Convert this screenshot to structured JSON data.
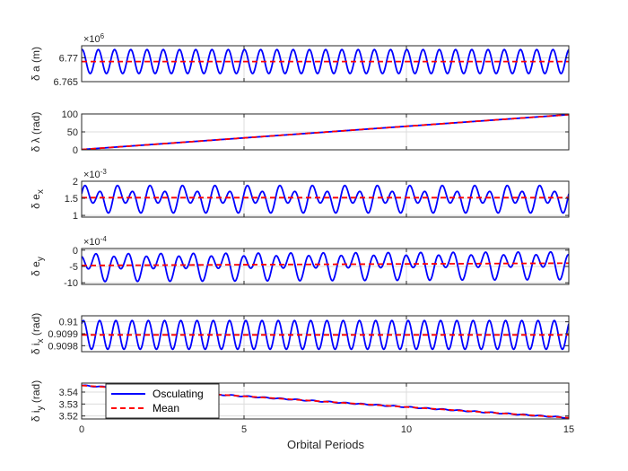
{
  "figure": {
    "xlabel": "Orbital Periods",
    "x_ticks": [
      "0",
      "5",
      "10",
      "15"
    ],
    "legend": {
      "placement": "top-left of last panel",
      "entries": [
        "Osculating",
        "Mean"
      ]
    },
    "colors": {
      "osculating": "#0000FF",
      "mean": "#FF0000",
      "grid": "#dcdcdc",
      "axes": "#262626"
    }
  },
  "chart_data": [
    {
      "type": "line",
      "ylabel": "δ a (m)",
      "exponent_label": "×10^6",
      "yticks": [
        6.765,
        6.77
      ],
      "ytick_labels": [
        "6.765",
        "6.77"
      ],
      "ylim": [
        6.765,
        6.7725
      ],
      "xlim": [
        0,
        15
      ],
      "grid": true,
      "series": [
        {
          "name": "Osculating",
          "style": "solid",
          "model": {
            "kind": "sin",
            "mean": 6.7692,
            "amplitude": 0.0025,
            "cycles_per_period": 2,
            "phase": 1.4
          }
        },
        {
          "name": "Mean",
          "style": "dashed",
          "model": {
            "kind": "const",
            "value": 6.7692
          }
        }
      ]
    },
    {
      "type": "line",
      "ylabel": "δ λ (rad)",
      "exponent_label": "",
      "yticks": [
        0,
        50,
        100
      ],
      "ytick_labels": [
        "0",
        "50",
        "100"
      ],
      "ylim": [
        0,
        100
      ],
      "xlim": [
        0,
        15
      ],
      "grid": true,
      "series": [
        {
          "name": "Osculating",
          "style": "solid",
          "model": {
            "kind": "linear",
            "start": 0.8,
            "end": 98
          }
        },
        {
          "name": "Mean",
          "style": "dashed",
          "model": {
            "kind": "linear",
            "start": 0.8,
            "end": 98
          }
        }
      ]
    },
    {
      "type": "line",
      "ylabel": "δ e_x",
      "exponent_label": "×10^-3",
      "yticks": [
        1,
        1.5,
        2
      ],
      "ytick_labels": [
        "1",
        "1.5",
        "2"
      ],
      "ylim": [
        0.95,
        2.0
      ],
      "xlim": [
        0,
        15
      ],
      "grid": true,
      "series": [
        {
          "name": "Osculating",
          "style": "solid",
          "model": {
            "kind": "sin2",
            "mean": 1.5,
            "a1": 0.28,
            "f1": 2,
            "a2": 0.17,
            "f2": 1,
            "phase": 0.5
          }
        },
        {
          "name": "Mean",
          "style": "dashed",
          "model": {
            "kind": "const",
            "value": 1.52
          }
        }
      ]
    },
    {
      "type": "line",
      "ylabel": "δ e_y",
      "exponent_label": "×10^-4",
      "yticks": [
        -10,
        -5,
        0
      ],
      "ytick_labels": [
        "-10",
        "-5",
        "0"
      ],
      "ylim": [
        -10.5,
        0.5
      ],
      "xlim": [
        0,
        15
      ],
      "grid": true,
      "series": [
        {
          "name": "Osculating",
          "style": "solid",
          "model": {
            "kind": "sin2",
            "mean": -4.7,
            "a1": 3.0,
            "f1": 2,
            "a2": 2.0,
            "f2": 1,
            "phase": 2.0,
            "drift": 0.6
          }
        },
        {
          "name": "Mean",
          "style": "dashed",
          "model": {
            "kind": "linear",
            "start": -4.7,
            "end": -4.0
          }
        }
      ]
    },
    {
      "type": "line",
      "ylabel": "δ i_x (rad)",
      "exponent_label": "",
      "yticks": [
        0.9098,
        0.9099,
        0.91
      ],
      "ytick_labels": [
        "0.9098",
        "0.9099",
        "0.91"
      ],
      "ylim": [
        0.90975,
        0.91005
      ],
      "xlim": [
        0,
        15
      ],
      "grid": true,
      "series": [
        {
          "name": "Osculating",
          "style": "solid",
          "model": {
            "kind": "sin",
            "mean": 0.90989,
            "amplitude": 0.00012,
            "cycles_per_period": 2,
            "phase": 0.9
          }
        },
        {
          "name": "Mean",
          "style": "dashed",
          "model": {
            "kind": "const",
            "value": 0.90989
          }
        }
      ]
    },
    {
      "type": "line",
      "ylabel": "δ i_y (rad)",
      "exponent_label": "",
      "yticks": [
        3.52,
        3.53,
        3.54
      ],
      "ytick_labels": [
        "3.52",
        "3.53",
        "3.54"
      ],
      "ylim": [
        3.5175,
        3.5475
      ],
      "xlim": [
        0,
        15
      ],
      "grid": true,
      "series": [
        {
          "name": "Osculating",
          "style": "solid",
          "model": {
            "kind": "linear_wiggle",
            "start": 3.5455,
            "end": 3.5185,
            "amplitude": 0.0004,
            "cycles_per_period": 2
          }
        },
        {
          "name": "Mean",
          "style": "dashed",
          "model": {
            "kind": "linear",
            "start": 3.5455,
            "end": 3.5185
          }
        }
      ]
    }
  ]
}
